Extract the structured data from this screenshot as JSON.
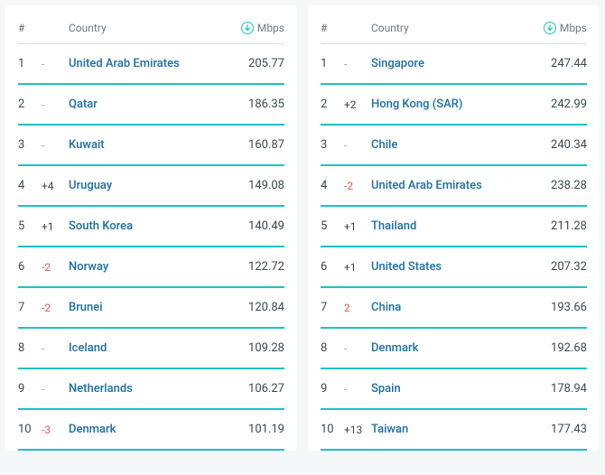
{
  "headers": {
    "rank": "#",
    "country": "Country",
    "mbps": "Mbps"
  },
  "colors": {
    "accent": "#1fc1c3",
    "link": "#1c6ea4",
    "pos": "#3a4850",
    "neg": "#e05a5a",
    "dash": "#9aa5ad",
    "muted": "#6b7a86"
  },
  "left": [
    {
      "rank": "1",
      "change": "-",
      "country": "United Arab Emirates",
      "mbps": "205.77"
    },
    {
      "rank": "2",
      "change": "-",
      "country": "Qatar",
      "mbps": "186.35"
    },
    {
      "rank": "3",
      "change": "-",
      "country": "Kuwait",
      "mbps": "160.87"
    },
    {
      "rank": "4",
      "change": "+4",
      "country": "Uruguay",
      "mbps": "149.08"
    },
    {
      "rank": "5",
      "change": "+1",
      "country": "South Korea",
      "mbps": "140.49"
    },
    {
      "rank": "6",
      "change": "-2",
      "country": "Norway",
      "mbps": "122.72"
    },
    {
      "rank": "7",
      "change": "-2",
      "country": "Brunei",
      "mbps": "120.84"
    },
    {
      "rank": "8",
      "change": "-",
      "country": "Iceland",
      "mbps": "109.28"
    },
    {
      "rank": "9",
      "change": "-",
      "country": "Netherlands",
      "mbps": "106.27"
    },
    {
      "rank": "10",
      "change": "-3",
      "country": "Denmark",
      "mbps": "101.19"
    }
  ],
  "right": [
    {
      "rank": "1",
      "change": "-",
      "country": "Singapore",
      "mbps": "247.44"
    },
    {
      "rank": "2",
      "change": "+2",
      "country": "Hong Kong (SAR)",
      "mbps": "242.99"
    },
    {
      "rank": "3",
      "change": "-",
      "country": "Chile",
      "mbps": "240.34"
    },
    {
      "rank": "4",
      "change": "-2",
      "country": "United Arab Emirates",
      "mbps": "238.28"
    },
    {
      "rank": "5",
      "change": "+1",
      "country": "Thailand",
      "mbps": "211.28"
    },
    {
      "rank": "6",
      "change": "+1",
      "country": "United States",
      "mbps": "207.32"
    },
    {
      "rank": "7",
      "change": "2",
      "country": "China",
      "mbps": "193.66"
    },
    {
      "rank": "8",
      "change": "-",
      "country": "Denmark",
      "mbps": "192.68"
    },
    {
      "rank": "9",
      "change": "-",
      "country": "Spain",
      "mbps": "178.94"
    },
    {
      "rank": "10",
      "change": "+13",
      "country": "Taiwan",
      "mbps": "177.43"
    }
  ]
}
